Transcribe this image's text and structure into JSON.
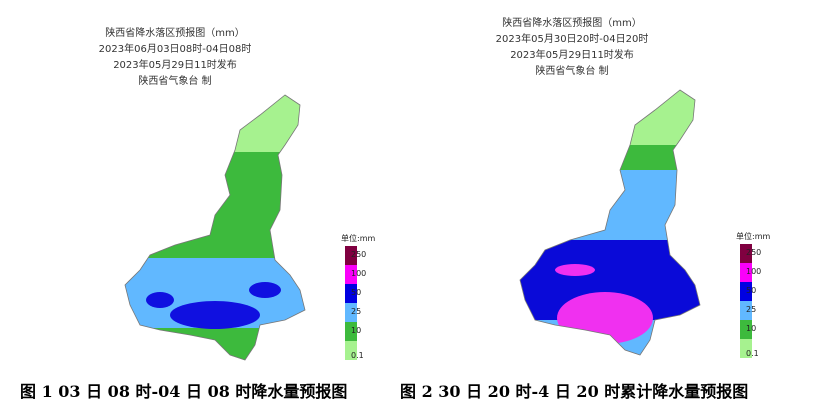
{
  "maps": [
    {
      "title_lines": [
        "陕西省降水落区预报图（mm）",
        "2023年06月03日08时-04日08时",
        "2023年05月29日11时发布",
        "陕西省气象台  制"
      ],
      "legend": {
        "unit": "单位:mm",
        "levels": [
          0.1,
          10,
          25,
          50,
          100,
          250
        ]
      },
      "caption": "图 1 03 日 08 时-04 日 08 时降水量预报图"
    },
    {
      "title_lines": [
        "陕西省降水落区预报图（mm）",
        "2023年05月30日20时-04日20时",
        "2023年05月29日11时发布",
        "陕西省气象台  制"
      ],
      "legend": {
        "unit": "单位:mm",
        "levels": [
          0.1,
          10,
          25,
          50,
          100,
          250
        ]
      },
      "caption": "图 2 30 日 20 时-4 日 20 时累计降水量预报图"
    }
  ]
}
